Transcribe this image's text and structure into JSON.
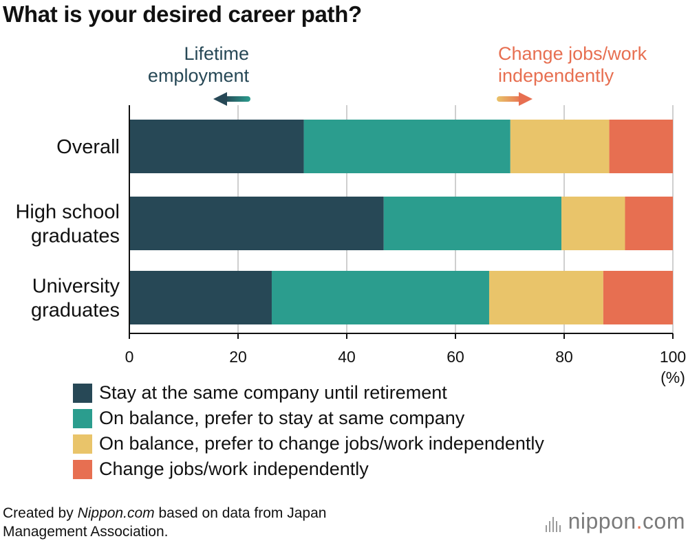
{
  "title": "What is your desired career path?",
  "annotations": {
    "left": [
      "Lifetime",
      "employment"
    ],
    "right": [
      "Change jobs/work",
      "independently"
    ]
  },
  "colors": {
    "stay_retire": "#274856",
    "stay_balance": "#2b9d8e",
    "change_balance": "#e9c46a",
    "change": "#e76f51",
    "arrow_left": "#2b9d8e",
    "arrow_right": "#f4a261"
  },
  "chart_data": {
    "type": "bar",
    "orientation": "horizontal",
    "stacked": true,
    "categories": [
      [
        "Overall"
      ],
      [
        "High school",
        "graduates"
      ],
      [
        "University",
        "graduates"
      ]
    ],
    "series": [
      {
        "name": "Stay at the same company until retirement",
        "values": [
          32.1,
          46.8,
          26.2
        ],
        "color": "#274856"
      },
      {
        "name": "On balance, prefer to stay at same company",
        "values": [
          38.0,
          32.7,
          40.0
        ],
        "color": "#2b9d8e"
      },
      {
        "name": "On balance, prefer to change jobs/work independently",
        "values": [
          18.2,
          11.7,
          21.0
        ],
        "color": "#e9c46a"
      },
      {
        "name": "Change jobs/work independently",
        "values": [
          11.7,
          8.8,
          12.8
        ],
        "color": "#e76f51"
      }
    ],
    "xlim": [
      0,
      100
    ],
    "xticks": [
      0,
      20,
      40,
      60,
      80,
      100
    ],
    "xunit": "(%)",
    "grid": true,
    "legend_position": "bottom"
  },
  "footnote": {
    "prefix": "Created by ",
    "source": "Nippon.com",
    "line1_suffix": " based on data from Japan",
    "line2": "Management Association."
  },
  "logo": {
    "name": "nippon",
    "dot": ".",
    "suffix": "com"
  }
}
